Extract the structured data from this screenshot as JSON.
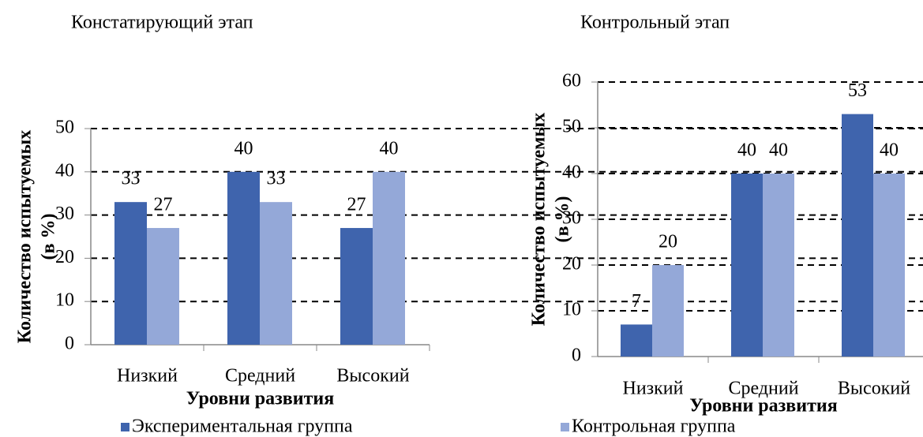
{
  "chart_data": [
    {
      "type": "bar",
      "title": "Констатирующий этап",
      "y_label": [
        "Количество испытуемых",
        "(в %)"
      ],
      "x_label": "Уровни развития",
      "categories": [
        "Низкий",
        "Средний",
        "Высокий"
      ],
      "series": [
        {
          "name": "Экспериментальная группа",
          "color": "#3f64ad",
          "values": [
            33,
            40,
            27
          ]
        },
        {
          "name": "Контрольная группа",
          "color": "#94a8d8",
          "values": [
            27,
            33,
            40
          ]
        }
      ],
      "ylim": [
        0,
        50
      ],
      "yticks": [
        0,
        10,
        20,
        30,
        40,
        50
      ],
      "grid": true
    },
    {
      "type": "bar",
      "title": "Контрольный этап",
      "y_label": [
        "Количество испытуемых",
        "(в %)"
      ],
      "x_label": "Уровни развития",
      "categories": [
        "Низкий",
        "Средний",
        "Высокий"
      ],
      "series": [
        {
          "name": "Экспериментальная группа",
          "color": "#3f64ad",
          "values": [
            7,
            40,
            53
          ]
        },
        {
          "name": "Контрольная группа",
          "color": "#94a8d8",
          "values": [
            20,
            40,
            40
          ]
        }
      ],
      "ylim": [
        0,
        60
      ],
      "yticks": [
        0,
        10,
        20,
        30,
        40,
        50,
        60
      ],
      "grid": true
    }
  ]
}
